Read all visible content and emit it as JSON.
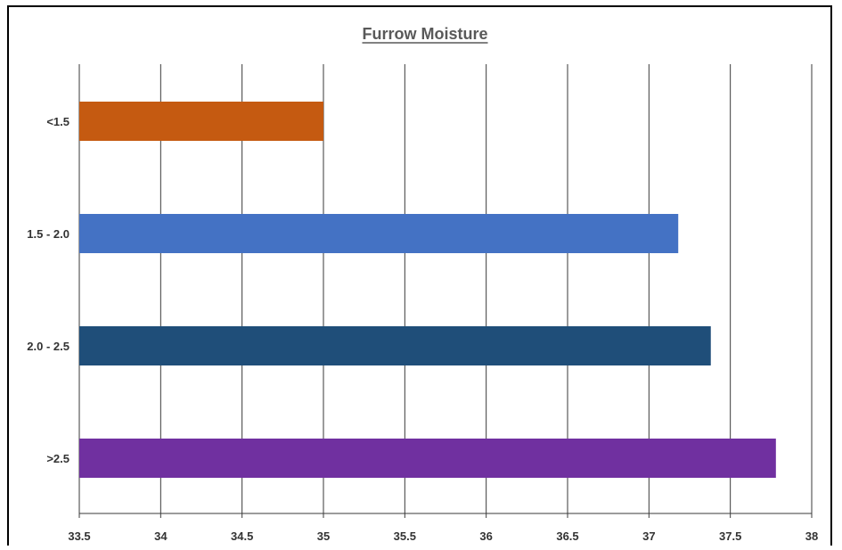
{
  "chart_data": {
    "type": "bar",
    "orientation": "horizontal",
    "title": "Furrow Moisture",
    "xlabel": "",
    "ylabel": "",
    "xlim": [
      33.5,
      38
    ],
    "x_ticks": [
      "33.5",
      "34",
      "34.5",
      "35",
      "35.5",
      "36",
      "36.5",
      "37",
      "37.5",
      "38"
    ],
    "grid": "vertical",
    "legend": "none",
    "categories": [
      "<1.5",
      "1.5 - 2.0",
      "2.0 - 2.5",
      ">2.5"
    ],
    "values": [
      35.0,
      37.18,
      37.38,
      37.78
    ],
    "colors": [
      "#C55A11",
      "#4472C4",
      "#1F4E79",
      "#7030A0"
    ]
  }
}
